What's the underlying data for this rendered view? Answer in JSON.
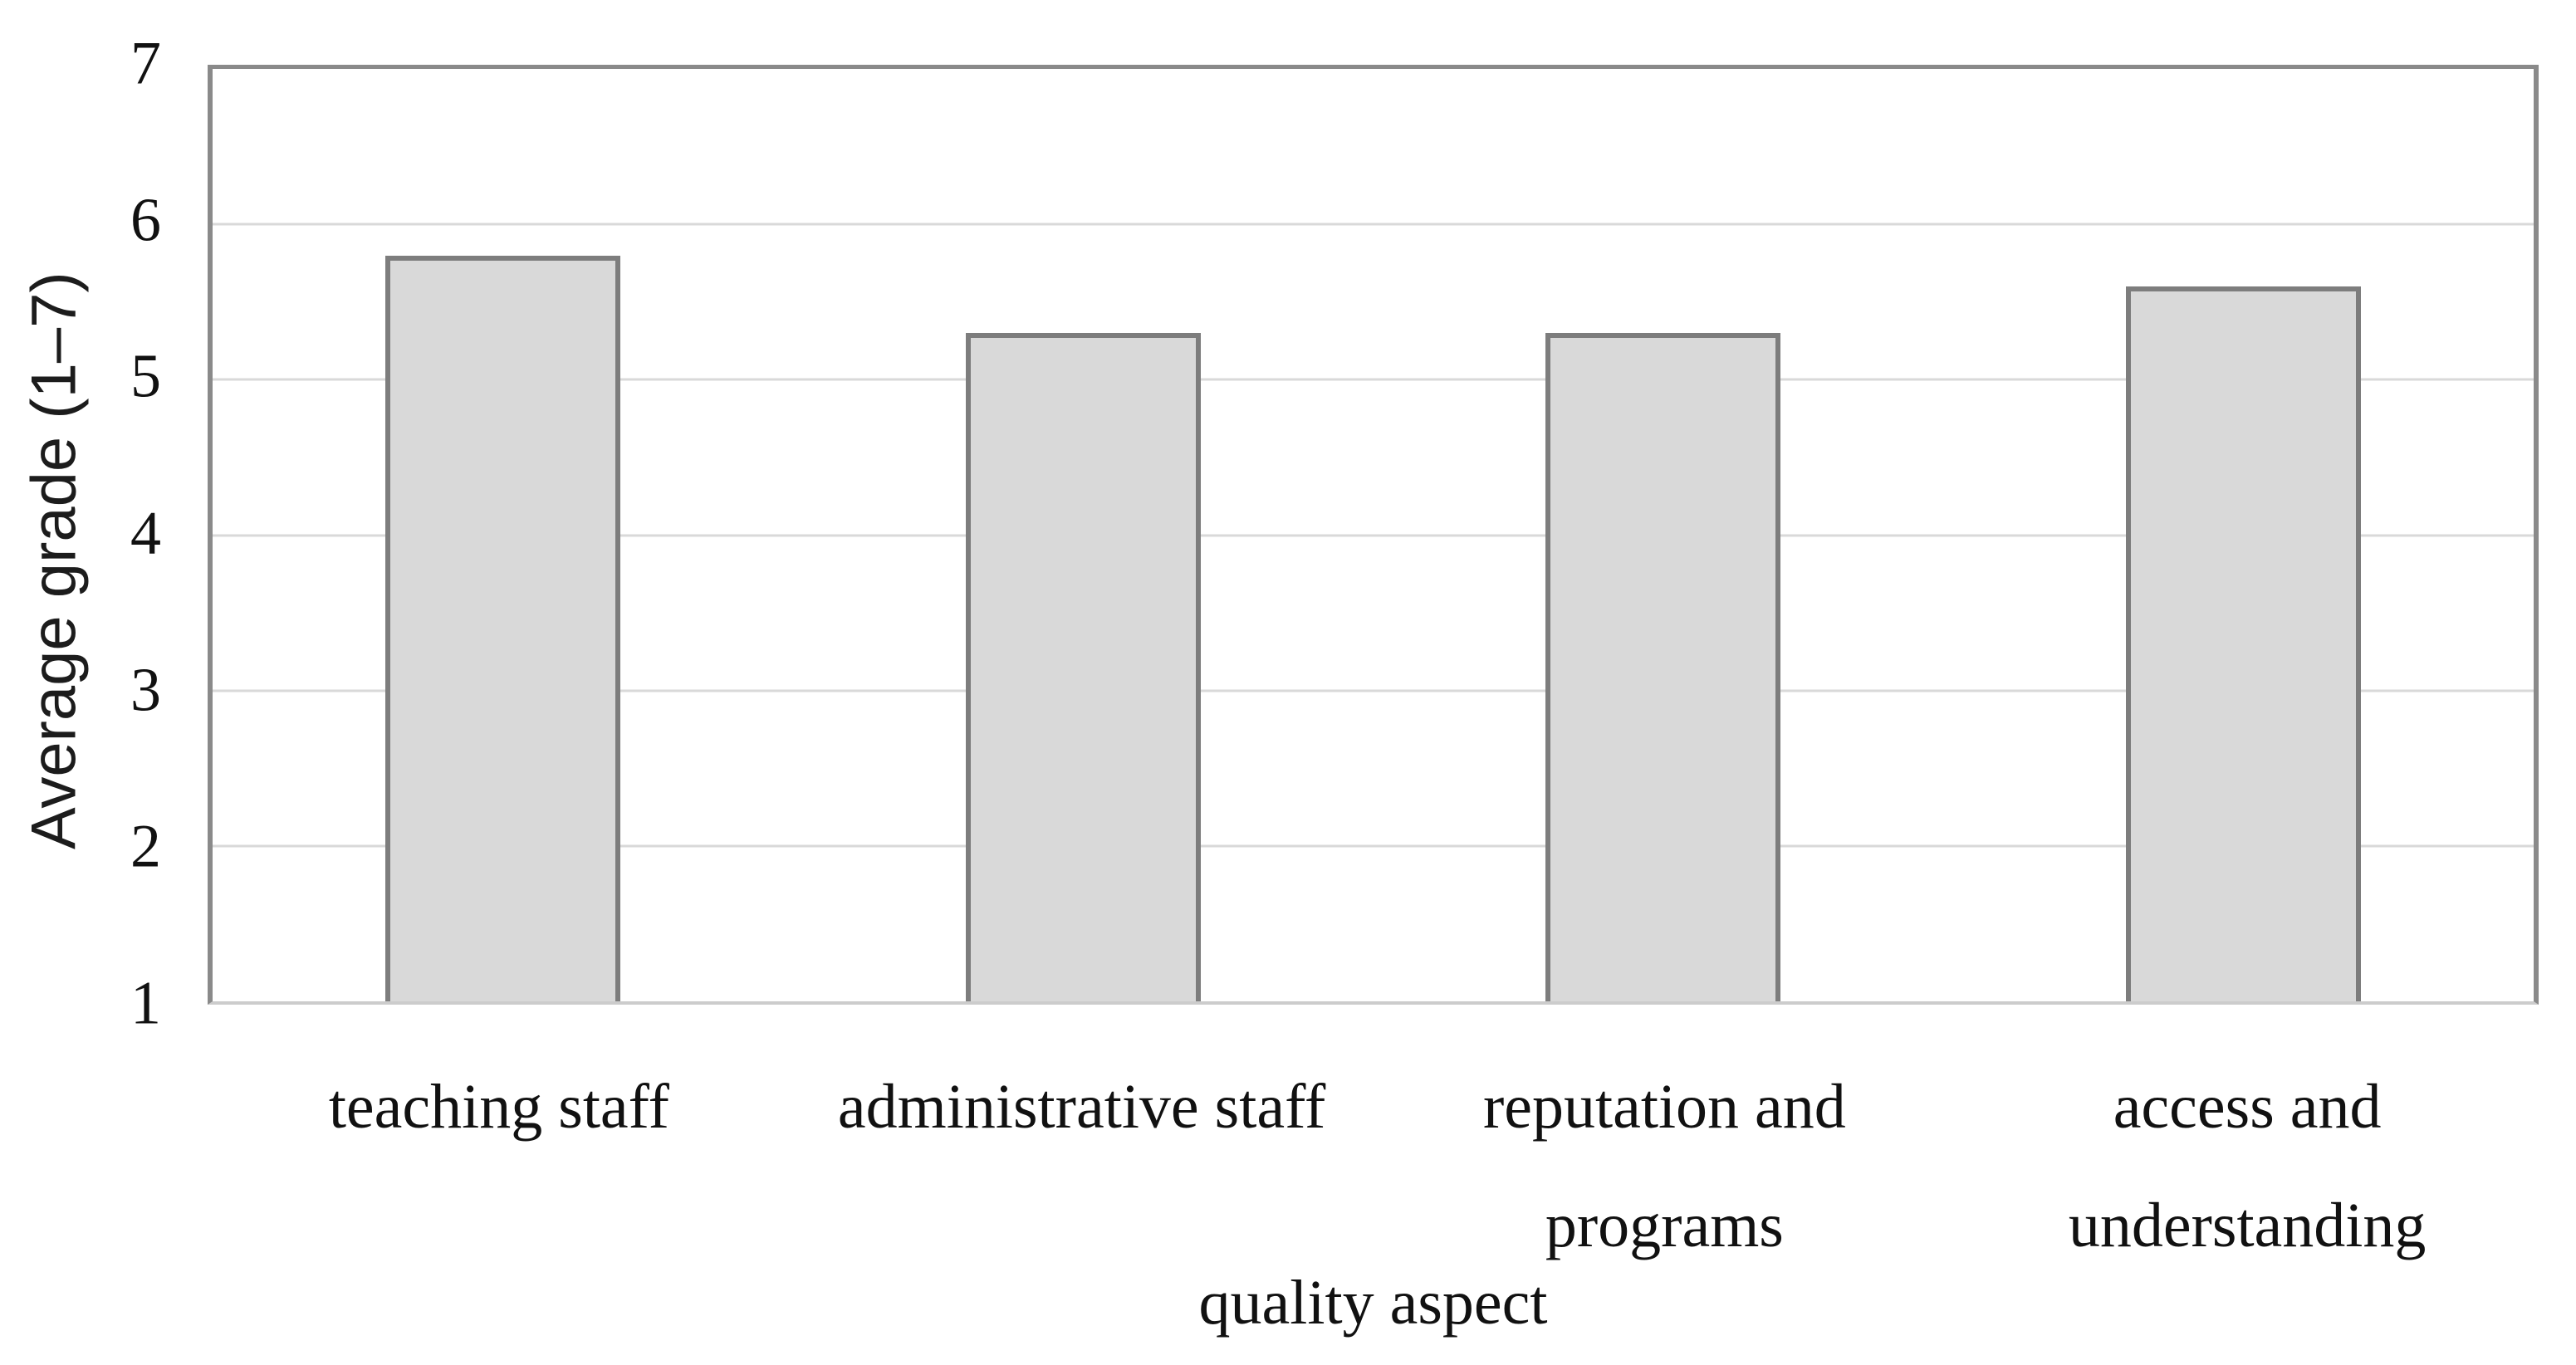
{
  "chart_data": {
    "type": "bar",
    "title": "",
    "categories": [
      "teaching staff",
      "administrative staff",
      "reputation and programs",
      "access and understanding"
    ],
    "category_lines": [
      [
        "teaching staff"
      ],
      [
        "administrative staff"
      ],
      [
        "reputation and",
        "programs"
      ],
      [
        "access and",
        "understanding"
      ]
    ],
    "values": [
      5.8,
      5.3,
      5.3,
      5.6
    ],
    "ylabel": "Average grade (1–7)",
    "xlabel": "quality aspect",
    "ylim": [
      1,
      7
    ],
    "yticks": [
      1,
      2,
      3,
      4,
      5,
      6,
      7
    ],
    "grid": "horizontal-on",
    "legend": "none",
    "colors": {
      "bar_fill": "#d9d9d9",
      "bar_border": "#7d7d7d",
      "gridline": "#d9d9d9",
      "plot_border": "#8a8a8a",
      "text": "#111111",
      "background": "#ffffff"
    }
  }
}
